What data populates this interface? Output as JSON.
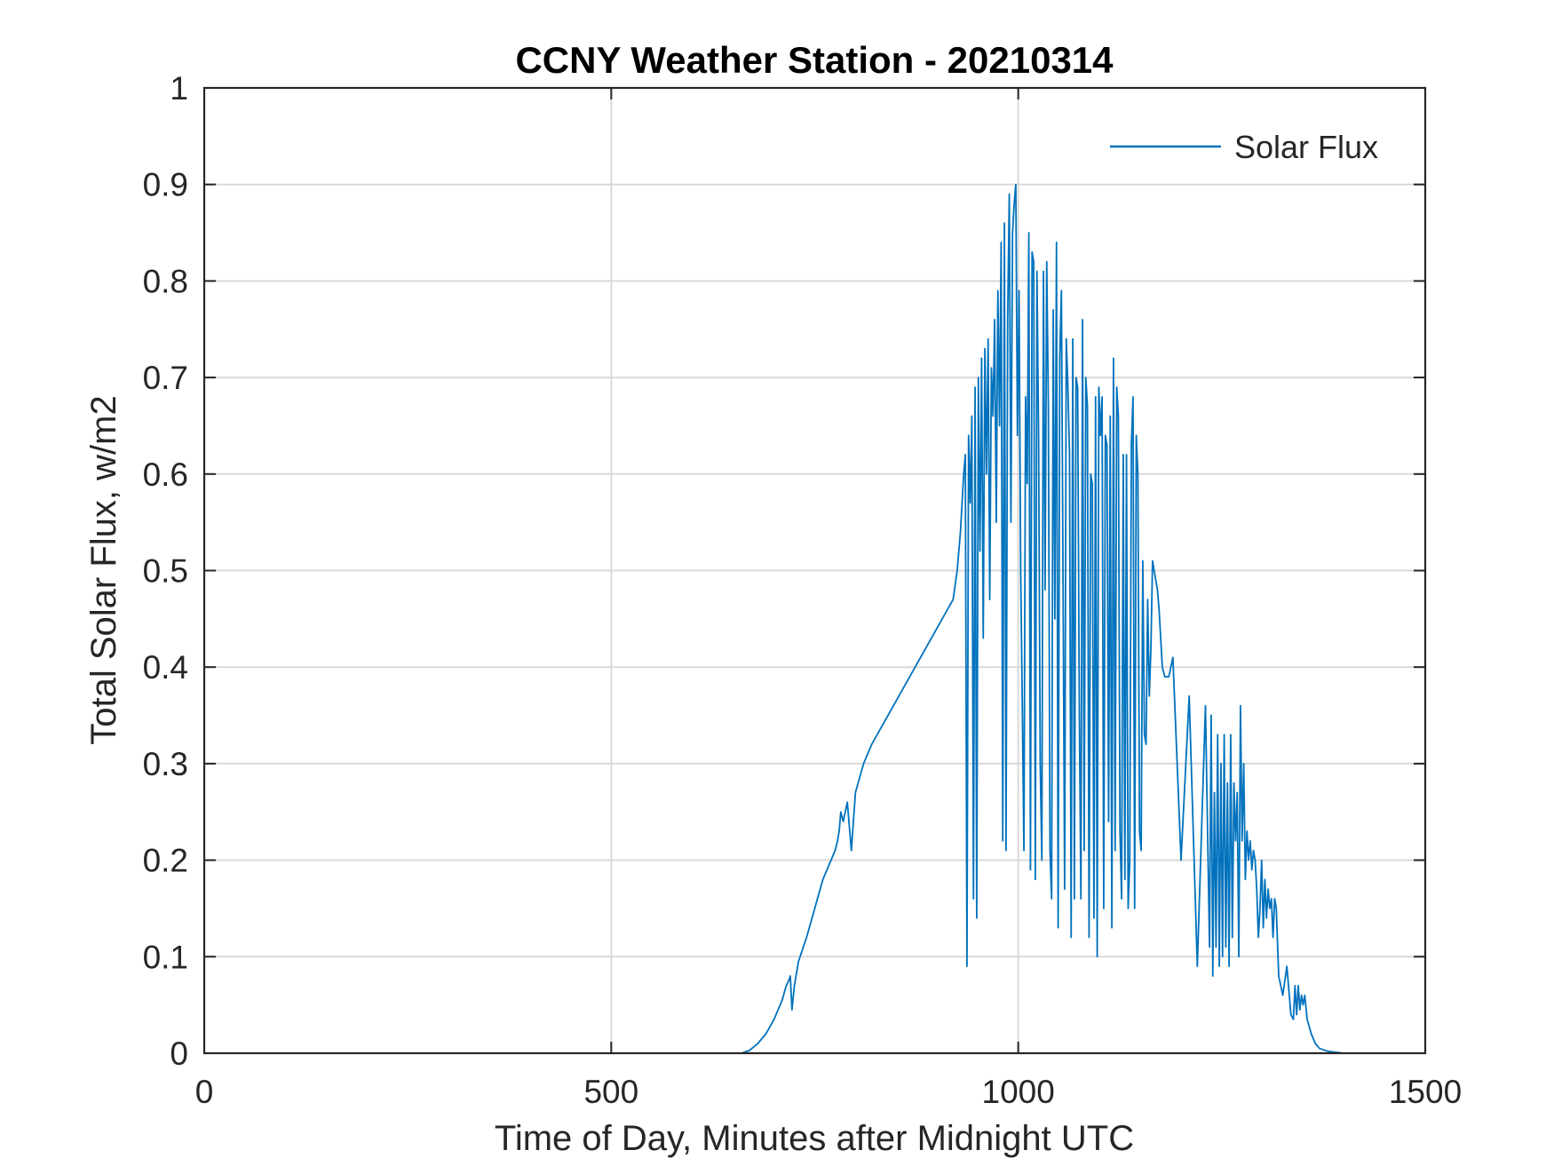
{
  "chart_data": {
    "type": "line",
    "title": "CCNY Weather Station - 20210314",
    "xlabel": "Time of Day, Minutes after Midnight UTC",
    "ylabel": "Total Solar Flux, w/m2",
    "xlim": [
      0,
      1500
    ],
    "ylim": [
      0,
      1
    ],
    "x_ticks": [
      0,
      500,
      1000,
      1500
    ],
    "x_tick_labels": [
      "0",
      "500",
      "1000",
      "1500"
    ],
    "y_ticks": [
      0,
      0.1,
      0.2,
      0.3,
      0.4,
      0.5,
      0.6,
      0.7,
      0.8,
      0.9,
      1
    ],
    "y_tick_labels": [
      "0",
      "0.1",
      "0.2",
      "0.3",
      "0.4",
      "0.5",
      "0.6",
      "0.7",
      "0.8",
      "0.9",
      "1"
    ],
    "grid": true,
    "legend_position": "top-right",
    "series": [
      {
        "name": "Solar Flux",
        "color": "#0072BD",
        "x": [
          0,
          660,
          670,
          680,
          690,
          700,
          710,
          715,
          718,
          720,
          722,
          725,
          730,
          740,
          750,
          760,
          765,
          770,
          775,
          778,
          780,
          782,
          785,
          790,
          795,
          800,
          810,
          820,
          840,
          860,
          880,
          900,
          920,
          925,
          927,
          929,
          931,
          933,
          935,
          937,
          939,
          941,
          943,
          945,
          947,
          949,
          951,
          953,
          955,
          957,
          959,
          961,
          963,
          965,
          967,
          969,
          971,
          973,
          975,
          977,
          979,
          981,
          983,
          985,
          987,
          989,
          991,
          993,
          995,
          997,
          999,
          1001,
          1003,
          1005,
          1007,
          1009,
          1011,
          1013,
          1015,
          1017,
          1019,
          1021,
          1023,
          1025,
          1027,
          1029,
          1031,
          1033,
          1035,
          1037,
          1039,
          1041,
          1043,
          1045,
          1047,
          1049,
          1051,
          1053,
          1055,
          1057,
          1059,
          1061,
          1063,
          1065,
          1067,
          1069,
          1071,
          1073,
          1075,
          1077,
          1079,
          1081,
          1083,
          1085,
          1087,
          1089,
          1091,
          1093,
          1095,
          1097,
          1099,
          1101,
          1103,
          1105,
          1107,
          1109,
          1111,
          1113,
          1115,
          1117,
          1119,
          1121,
          1123,
          1125,
          1127,
          1129,
          1131,
          1133,
          1135,
          1137,
          1139,
          1141,
          1143,
          1145,
          1147,
          1149,
          1151,
          1153,
          1155,
          1157,
          1159,
          1161,
          1163,
          1165,
          1167,
          1169,
          1171,
          1173,
          1175,
          1177,
          1180,
          1185,
          1190,
          1200,
          1210,
          1220,
          1230,
          1235,
          1237,
          1239,
          1241,
          1243,
          1245,
          1247,
          1249,
          1251,
          1253,
          1255,
          1257,
          1259,
          1261,
          1263,
          1265,
          1267,
          1269,
          1271,
          1273,
          1275,
          1277,
          1279,
          1281,
          1283,
          1285,
          1287,
          1289,
          1291,
          1293,
          1295,
          1297,
          1299,
          1301,
          1303,
          1305,
          1307,
          1309,
          1311,
          1313,
          1315,
          1317,
          1320,
          1325,
          1330,
          1335,
          1338,
          1340,
          1342,
          1344,
          1346,
          1348,
          1350,
          1352,
          1355,
          1360,
          1365,
          1370,
          1380,
          1390,
          1400,
          1410,
          1420,
          1430,
          1440
        ],
        "y": [
          0,
          0,
          0.003,
          0.01,
          0.02,
          0.035,
          0.055,
          0.07,
          0.075,
          0.08,
          0.045,
          0.07,
          0.095,
          0.12,
          0.15,
          0.18,
          0.19,
          0.2,
          0.21,
          0.22,
          0.23,
          0.25,
          0.24,
          0.26,
          0.21,
          0.27,
          0.3,
          0.32,
          0.35,
          0.38,
          0.41,
          0.44,
          0.47,
          0.5,
          0.52,
          0.54,
          0.57,
          0.6,
          0.62,
          0.09,
          0.64,
          0.57,
          0.66,
          0.16,
          0.69,
          0.14,
          0.7,
          0.52,
          0.72,
          0.43,
          0.73,
          0.6,
          0.74,
          0.47,
          0.71,
          0.66,
          0.76,
          0.55,
          0.79,
          0.65,
          0.84,
          0.22,
          0.86,
          0.21,
          0.76,
          0.89,
          0.55,
          0.85,
          0.88,
          0.9,
          0.64,
          0.79,
          0.5,
          0.36,
          0.21,
          0.68,
          0.59,
          0.85,
          0.19,
          0.83,
          0.82,
          0.18,
          0.81,
          0.64,
          0.3,
          0.2,
          0.81,
          0.48,
          0.82,
          0.67,
          0.21,
          0.16,
          0.77,
          0.45,
          0.84,
          0.13,
          0.72,
          0.79,
          0.5,
          0.17,
          0.74,
          0.69,
          0.62,
          0.12,
          0.74,
          0.16,
          0.7,
          0.69,
          0.36,
          0.16,
          0.76,
          0.21,
          0.7,
          0.67,
          0.12,
          0.6,
          0.59,
          0.14,
          0.68,
          0.1,
          0.69,
          0.64,
          0.68,
          0.15,
          0.64,
          0.63,
          0.24,
          0.66,
          0.13,
          0.72,
          0.21,
          0.69,
          0.66,
          0.23,
          0.16,
          0.62,
          0.18,
          0.62,
          0.15,
          0.2,
          0.63,
          0.68,
          0.15,
          0.64,
          0.6,
          0.23,
          0.21,
          0.51,
          0.33,
          0.32,
          0.47,
          0.37,
          0.42,
          0.51,
          0.5,
          0.49,
          0.48,
          0.46,
          0.43,
          0.4,
          0.39,
          0.39,
          0.41,
          0.2,
          0.37,
          0.09,
          0.36,
          0.11,
          0.35,
          0.08,
          0.27,
          0.11,
          0.33,
          0.09,
          0.3,
          0.1,
          0.33,
          0.11,
          0.28,
          0.09,
          0.33,
          0.12,
          0.28,
          0.22,
          0.27,
          0.1,
          0.36,
          0.22,
          0.3,
          0.18,
          0.23,
          0.2,
          0.22,
          0.19,
          0.21,
          0.2,
          0.17,
          0.12,
          0.15,
          0.2,
          0.13,
          0.18,
          0.14,
          0.17,
          0.15,
          0.16,
          0.12,
          0.16,
          0.15,
          0.08,
          0.06,
          0.09,
          0.04,
          0.035,
          0.07,
          0.04,
          0.07,
          0.045,
          0.06,
          0.05,
          0.06,
          0.035,
          0.02,
          0.01,
          0.005,
          0.002,
          0.001,
          0,
          0,
          0,
          0,
          0
        ]
      }
    ]
  }
}
